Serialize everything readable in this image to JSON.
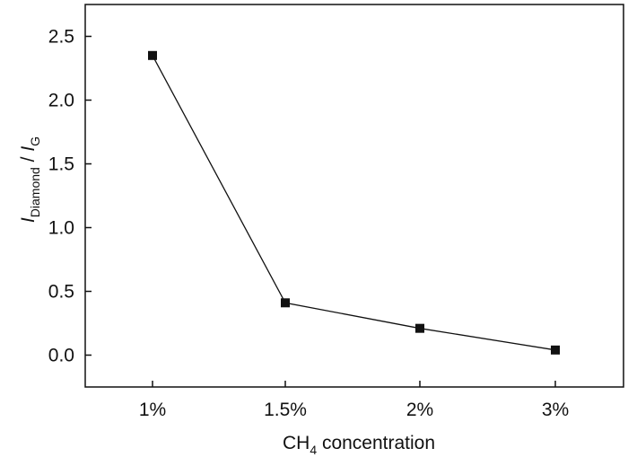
{
  "chart_data": {
    "type": "line",
    "categories": [
      "1%",
      "1.5%",
      "2%",
      "3%"
    ],
    "series": [
      {
        "values": [
          2.35,
          0.41,
          0.21,
          0.04
        ],
        "marker": "square",
        "color": "#111111"
      }
    ],
    "ylim": [
      -0.25,
      2.75
    ],
    "yticks": [
      0.0,
      0.5,
      1.0,
      1.5,
      2.0,
      2.5
    ],
    "ytick_labels": [
      "0.0",
      "0.5",
      "1.0",
      "1.5",
      "2.0",
      "2.5"
    ],
    "xlabel": {
      "prefix": "CH",
      "subscript": "4",
      "suffix": " concentration"
    },
    "ylabel": {
      "main1": "I",
      "sub1": "Diamond",
      "sep": " / ",
      "main2": "I",
      "sub2": "G"
    },
    "grid": false,
    "legend": false
  }
}
